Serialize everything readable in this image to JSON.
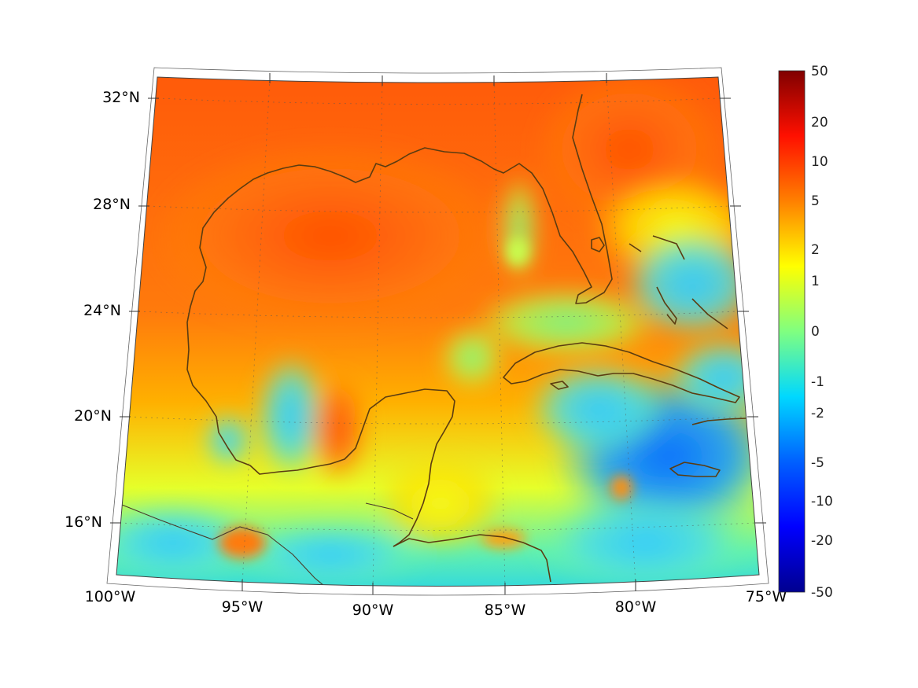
{
  "map": {
    "projection": "conic",
    "extent": {
      "lon": [
        -100,
        -75
      ],
      "lat": [
        14,
        33
      ]
    },
    "lon_labels": [
      "100°W",
      "95°W",
      "90°W",
      "85°W",
      "80°W",
      "75°W"
    ],
    "lat_labels": [
      "32°N",
      "28°N",
      "24°N",
      "20°N",
      "16°N"
    ],
    "field_colormap": "jet",
    "coastline_color": "#5b3c11",
    "regions": [
      {
        "name": "northern-gulf",
        "level": "5 to 10"
      },
      {
        "name": "western-caribbean",
        "level": "-2 to -5"
      },
      {
        "name": "bay-of-campeche-band",
        "level": "-1 to -2"
      },
      {
        "name": "yucatan-channel",
        "level": "0 to 2"
      },
      {
        "name": "pacific-coast-mexico",
        "level": "-1 to -2"
      }
    ]
  },
  "colorbar": {
    "labels": [
      "50",
      "20",
      "10",
      "5",
      "2",
      "1",
      "0",
      "-1",
      "-2",
      "-5",
      "-10",
      "-20",
      "-50"
    ],
    "colors": [
      "#00008f",
      "#0000ff",
      "#0080ff",
      "#00ffff",
      "#80ff80",
      "#ffff00",
      "#ff8000",
      "#ff0000",
      "#800000"
    ]
  }
}
